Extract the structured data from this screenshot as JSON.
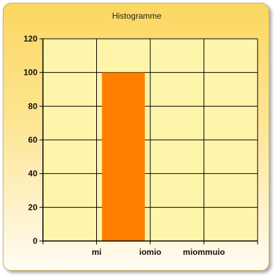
{
  "chart_data": {
    "type": "bar",
    "title": "Histogramme",
    "xlabel": "",
    "ylabel": "",
    "categories": [
      "",
      "mi",
      "iomio",
      "miommuio"
    ],
    "values": [
      0,
      100,
      0,
      0
    ],
    "ylim": [
      0,
      120
    ],
    "yticks": [
      0,
      20,
      40,
      60,
      80,
      100,
      120
    ],
    "grid": true,
    "legend": "none",
    "bar_color": "#ff7f00",
    "plot_background": "#fff5aa"
  }
}
